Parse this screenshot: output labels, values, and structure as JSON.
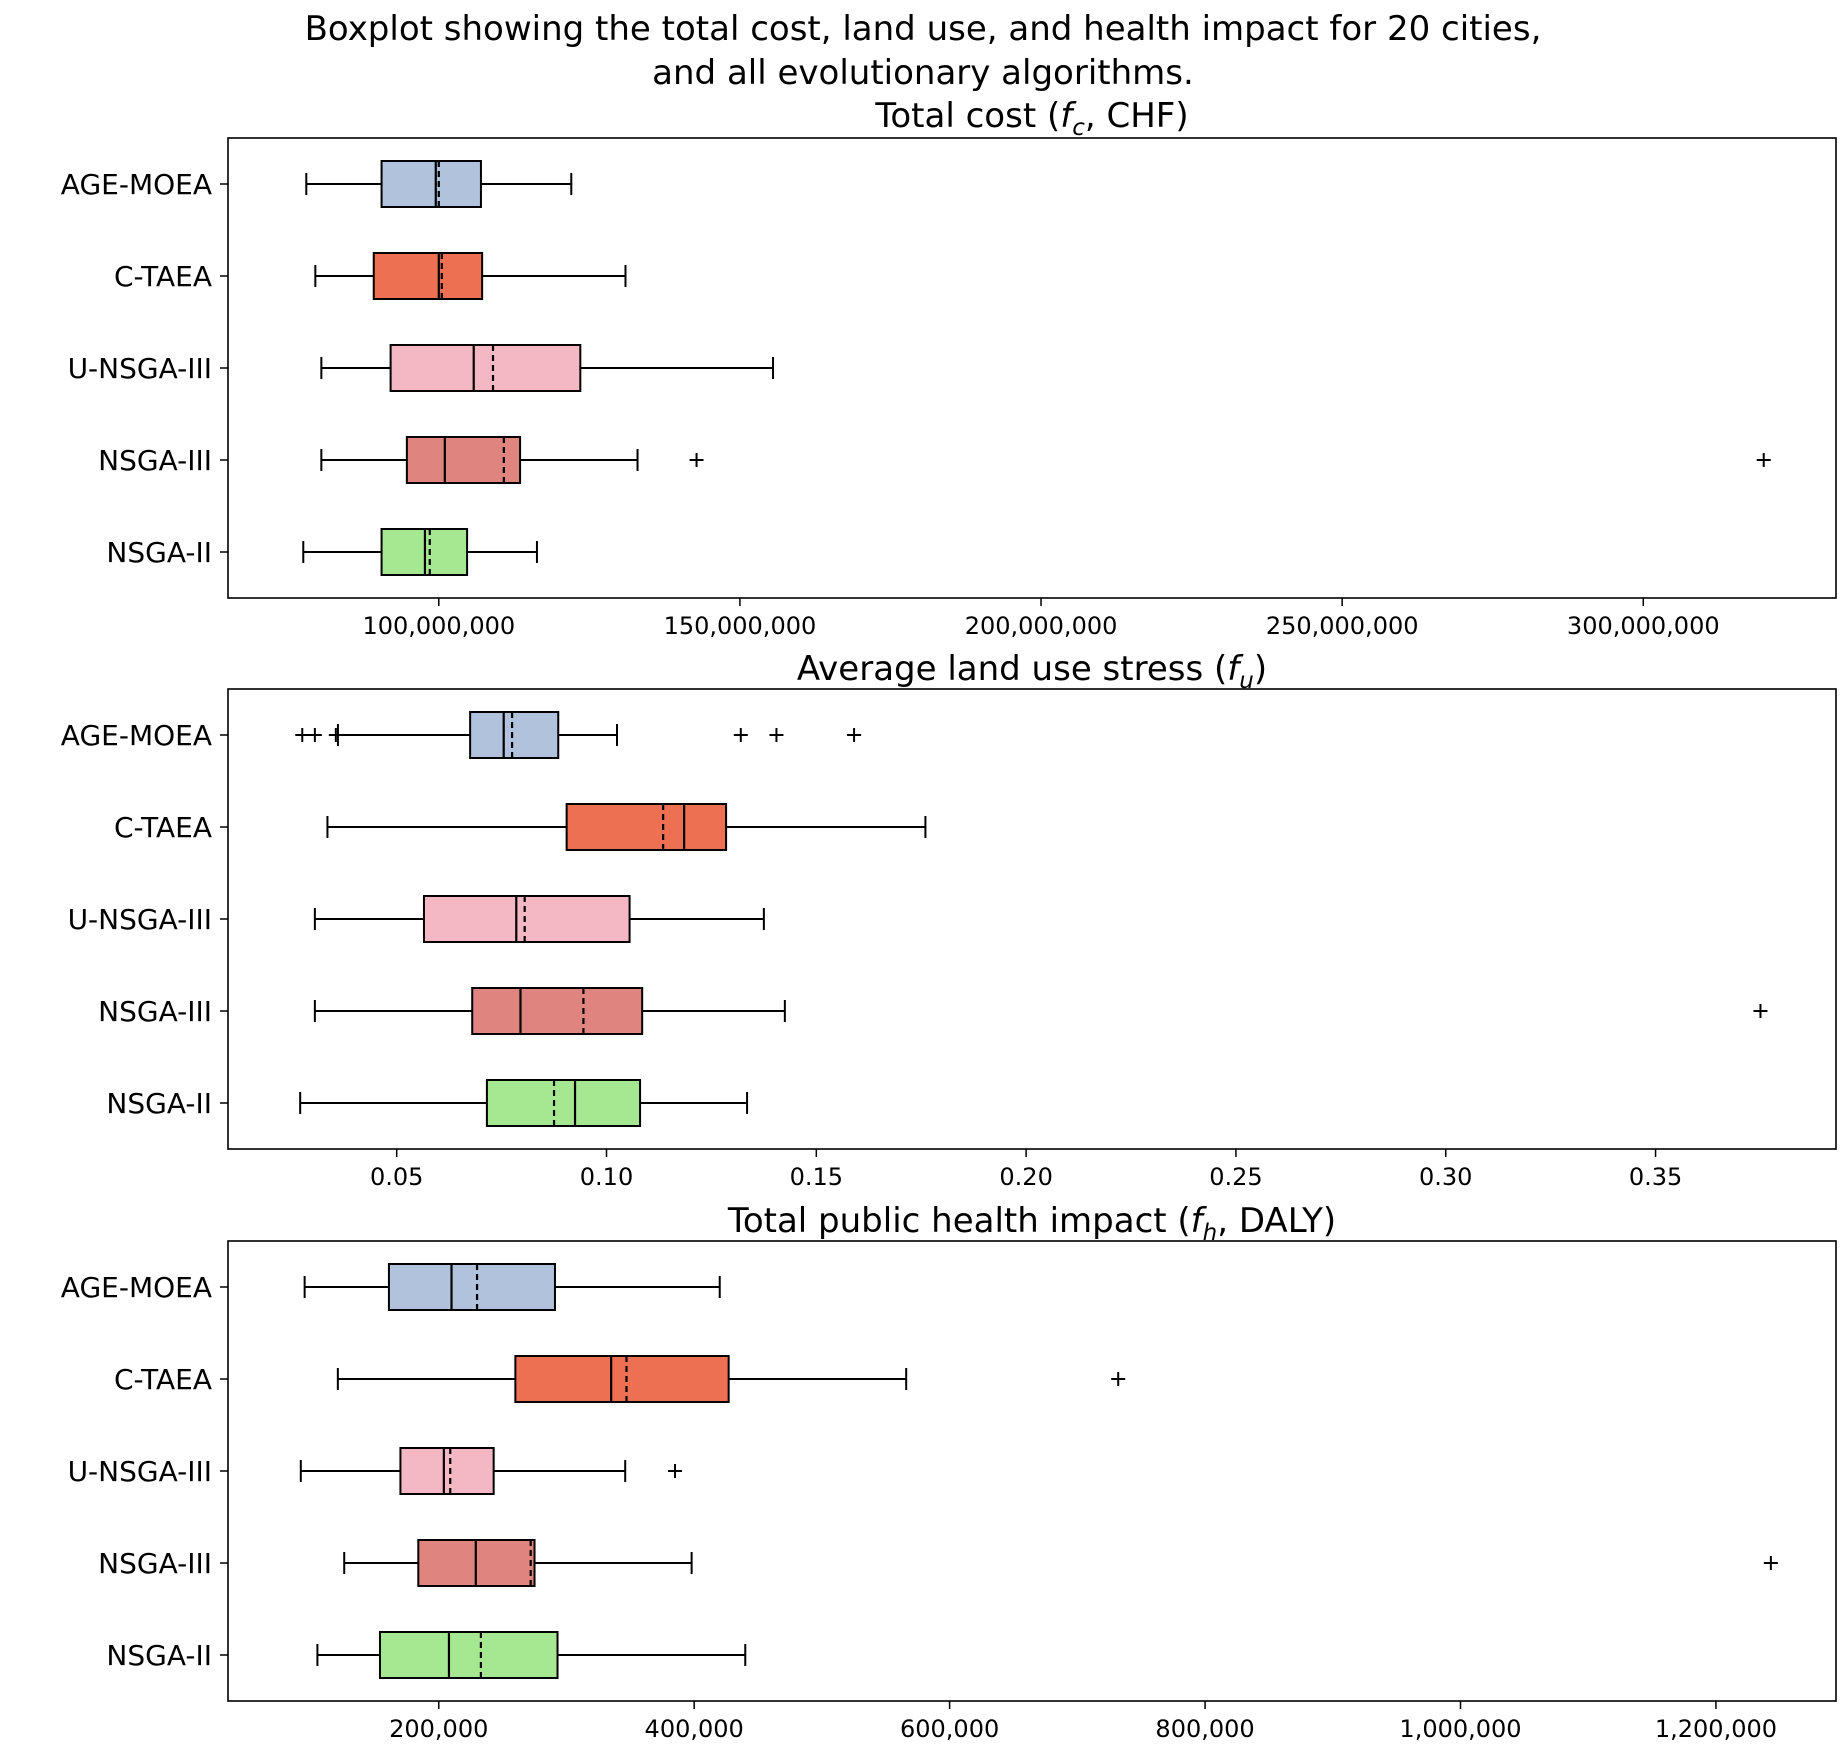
{
  "title_lines": [
    "Boxplot showing the total cost, land use, and health impact for 20 cities,",
    "and all evolutionary algorithms."
  ],
  "colors": {
    "AGE-MOEA": "#b0c2dc",
    "C-TAEA": "#ee7052",
    "U-NSGA-III": "#f4b8c4",
    "NSGA-III": "#e08480",
    "NSGA-II": "#a6e892"
  },
  "chart_data": [
    {
      "type": "box",
      "title_pre": "Total cost (",
      "title_var": "f",
      "title_sub": "c",
      "title_post": ", CHF)",
      "categories": [
        "AGE-MOEA",
        "C-TAEA",
        "U-NSGA-III",
        "NSGA-III",
        "NSGA-II"
      ],
      "xlim": [
        65000000,
        332000000
      ],
      "xticks": [
        100000000,
        150000000,
        200000000,
        250000000,
        300000000
      ],
      "xtick_labels": [
        "100,000,000",
        "150,000,000",
        "200,000,000",
        "250,000,000",
        "300,000,000"
      ],
      "boxes": [
        {
          "name": "AGE-MOEA",
          "whislo": 78000000,
          "q1": 90500000,
          "med": 99500000,
          "mean": 100000000,
          "q3": 107000000,
          "whishi": 122000000,
          "fliers": []
        },
        {
          "name": "C-TAEA",
          "whislo": 79500000,
          "q1": 89200000,
          "med": 100000000,
          "mean": 100500000,
          "q3": 107200000,
          "whishi": 131000000,
          "fliers": []
        },
        {
          "name": "U-NSGA-III",
          "whislo": 80500000,
          "q1": 92000000,
          "med": 105800000,
          "mean": 109000000,
          "q3": 123500000,
          "whishi": 155500000,
          "fliers": []
        },
        {
          "name": "NSGA-III",
          "whislo": 80500000,
          "q1": 94700000,
          "med": 101000000,
          "mean": 110800000,
          "q3": 113500000,
          "whishi": 133000000,
          "fliers": [
            142800000,
            320000000
          ]
        },
        {
          "name": "NSGA-II",
          "whislo": 77500000,
          "q1": 90500000,
          "med": 97700000,
          "mean": 98500000,
          "q3": 104700000,
          "whishi": 116300000,
          "fliers": []
        }
      ]
    },
    {
      "type": "box",
      "title_pre": "Average land use stress (",
      "title_var": "f",
      "title_sub": "u",
      "title_post": ")",
      "categories": [
        "AGE-MOEA",
        "C-TAEA",
        "U-NSGA-III",
        "NSGA-III",
        "NSGA-II"
      ],
      "xlim": [
        0.0098,
        0.393
      ],
      "xticks": [
        0.05,
        0.1,
        0.15,
        0.2,
        0.25,
        0.3,
        0.35
      ],
      "xtick_labels": [
        "0.05",
        "0.10",
        "0.15",
        "0.20",
        "0.25",
        "0.30",
        "0.35"
      ],
      "boxes": [
        {
          "name": "AGE-MOEA",
          "whislo": 0.036,
          "q1": 0.0675,
          "med": 0.0755,
          "mean": 0.0775,
          "q3": 0.0885,
          "whishi": 0.1025,
          "fliers": [
            0.0275,
            0.0305,
            0.0355,
            0.132,
            0.1405,
            0.159
          ]
        },
        {
          "name": "C-TAEA",
          "whislo": 0.0335,
          "q1": 0.0905,
          "med": 0.1185,
          "mean": 0.1135,
          "q3": 0.1285,
          "whishi": 0.176,
          "fliers": []
        },
        {
          "name": "U-NSGA-III",
          "whislo": 0.0305,
          "q1": 0.0565,
          "med": 0.0785,
          "mean": 0.0805,
          "q3": 0.1055,
          "whishi": 0.1375,
          "fliers": []
        },
        {
          "name": "NSGA-III",
          "whislo": 0.0305,
          "q1": 0.068,
          "med": 0.0795,
          "mean": 0.0945,
          "q3": 0.1085,
          "whishi": 0.1425,
          "fliers": [
            0.375
          ]
        },
        {
          "name": "NSGA-II",
          "whislo": 0.027,
          "q1": 0.0715,
          "med": 0.0925,
          "mean": 0.0875,
          "q3": 0.108,
          "whishi": 0.1335,
          "fliers": []
        }
      ]
    },
    {
      "type": "box",
      "title_pre": "Total public health impact (",
      "title_var": "f",
      "title_sub": "h",
      "title_post": ", DALY)",
      "categories": [
        "AGE-MOEA",
        "C-TAEA",
        "U-NSGA-III",
        "NSGA-III",
        "NSGA-II"
      ],
      "xlim": [
        35000000,
        1294000000
      ],
      "xlim_note": "",
      "xticks": [
        200000,
        400000,
        600000,
        800000,
        1000000,
        1200000
      ],
      "xtick_labels": [
        "200,000",
        "400,000",
        "600,000",
        "800,000",
        "1,000,000",
        "1,200,000"
      ],
      "boxes": [
        {
          "name": "AGE-MOEA",
          "whislo": 95000,
          "q1": 161000,
          "med": 210000,
          "mean": 230000,
          "q3": 291000,
          "whishi": 420000,
          "fliers": []
        },
        {
          "name": "C-TAEA",
          "whislo": 121000,
          "q1": 260000,
          "med": 335000,
          "mean": 347000,
          "q3": 427000,
          "whishi": 566000,
          "fliers": [
            732000
          ]
        },
        {
          "name": "U-NSGA-III",
          "whislo": 92000,
          "q1": 170000,
          "med": 204000,
          "mean": 209000,
          "q3": 243000,
          "whishi": 346000,
          "fliers": [
            385000
          ]
        },
        {
          "name": "NSGA-III",
          "whislo": 126000,
          "q1": 184000,
          "med": 229000,
          "mean": 272000,
          "q3": 275000,
          "whishi": 398000,
          "fliers": [
            1243000
          ]
        },
        {
          "name": "NSGA-II",
          "whislo": 105000,
          "q1": 154000,
          "med": 208000,
          "mean": 233000,
          "q3": 293000,
          "whishi": 440000,
          "fliers": []
        }
      ]
    }
  ]
}
